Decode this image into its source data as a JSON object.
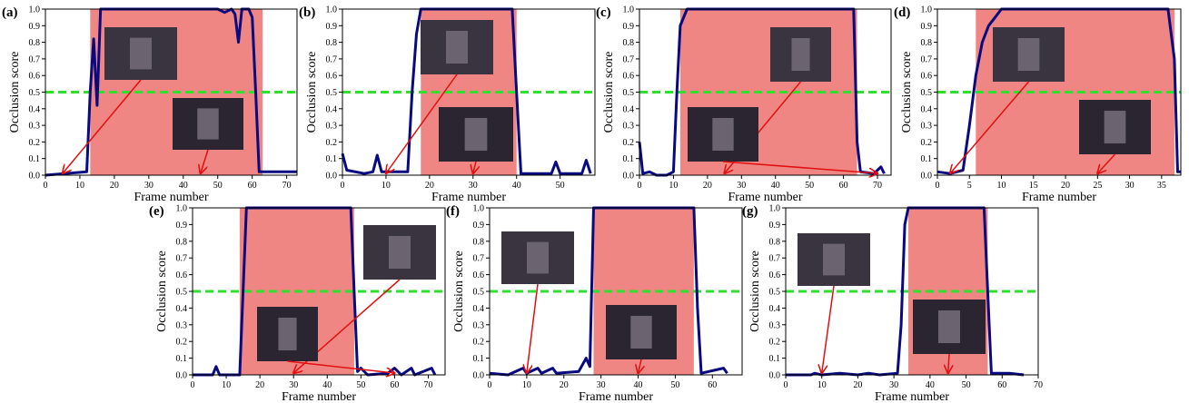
{
  "chart_data": [
    {
      "type": "line",
      "panel_label": "(a)",
      "xlabel": "Frame number",
      "ylabel": "Occlusion score",
      "x": [
        0,
        12,
        13,
        14,
        15,
        16,
        50,
        52,
        54,
        55,
        56,
        57,
        59,
        60,
        61,
        62,
        73
      ],
      "values": [
        0,
        0.02,
        0.5,
        0.82,
        0.42,
        1,
        1,
        0.98,
        1,
        0.97,
        0.8,
        1,
        1,
        0.95,
        0.5,
        0.02,
        0.02
      ],
      "color": "#0a0a80",
      "xlim": [
        0,
        73
      ],
      "xticks": [
        0,
        10,
        20,
        30,
        40,
        50,
        60,
        70
      ],
      "ylim": [
        0,
        1
      ],
      "yticks": [
        {
          "value": 0,
          "label": "0.0"
        },
        0.1,
        0.2,
        0.3,
        0.4,
        0.5,
        0.6,
        0.7,
        0.8,
        0.9,
        {
          "value": 1,
          "label": "1.0"
        }
      ],
      "shaded_range": [
        13,
        63
      ],
      "shade_color": "#ef8683",
      "threshold": 0.5,
      "threshold_color": "#2fe02f",
      "arrow_targets": [
        5,
        45
      ]
    },
    {
      "type": "line",
      "panel_label": "(b)",
      "xlabel": "Frame number",
      "ylabel": "Occlusion score",
      "x": [
        0,
        1,
        5,
        7,
        8,
        9,
        15,
        16,
        17,
        18,
        39,
        40,
        41,
        48,
        49,
        50,
        55,
        56,
        57
      ],
      "values": [
        0.13,
        0.03,
        0.01,
        0.02,
        0.12,
        0.02,
        0.02,
        0.5,
        0.85,
        1,
        1,
        0.5,
        0.01,
        0.01,
        0.08,
        0.01,
        0.01,
        0.09,
        0.01
      ],
      "color": "#0a0a80",
      "xlim": [
        0,
        58
      ],
      "xticks": [
        0,
        10,
        20,
        30,
        40,
        50
      ],
      "ylim": [
        0,
        1
      ],
      "yticks": [
        {
          "value": 0,
          "label": "0.0"
        },
        0.1,
        0.2,
        0.3,
        0.4,
        0.5,
        0.6,
        0.7,
        0.8,
        0.9,
        {
          "value": 1,
          "label": "1.0"
        }
      ],
      "shaded_range": [
        18,
        40
      ],
      "shade_color": "#ef8683",
      "threshold": 0.5,
      "threshold_color": "#2fe02f",
      "arrow_targets": [
        10,
        30
      ]
    },
    {
      "type": "line",
      "panel_label": "(c)",
      "xlabel": "Frame number",
      "ylabel": "Occlusion score",
      "x": [
        0,
        1,
        3,
        5,
        8,
        10,
        11,
        12,
        14,
        63,
        64,
        65,
        69,
        71,
        72
      ],
      "values": [
        0.2,
        0.01,
        0.02,
        0,
        0,
        0.02,
        0.5,
        0.9,
        1,
        1,
        0.2,
        0.02,
        0.01,
        0.05,
        0.01
      ],
      "color": "#0a0a80",
      "xlim": [
        0,
        74
      ],
      "xticks": [
        0,
        10,
        20,
        30,
        40,
        50,
        60,
        70
      ],
      "ylim": [
        0,
        1
      ],
      "yticks": [
        {
          "value": 0,
          "label": "0.0"
        },
        0.1,
        0.2,
        0.3,
        0.4,
        0.5,
        0.6,
        0.7,
        0.8,
        0.9,
        {
          "value": 1,
          "label": "1.0"
        }
      ],
      "shaded_range": [
        12,
        64
      ],
      "shade_color": "#ef8683",
      "threshold": 0.5,
      "threshold_color": "#2fe02f",
      "arrow_targets": [
        25,
        70
      ]
    },
    {
      "type": "line",
      "panel_label": "(d)",
      "xlabel": "Frame number",
      "ylabel": "Occlusion score",
      "x": [
        0,
        2,
        4,
        5,
        6,
        7,
        8,
        9,
        10,
        36,
        37,
        37.5,
        38
      ],
      "values": [
        0.02,
        0.01,
        0.03,
        0.3,
        0.6,
        0.8,
        0.9,
        0.95,
        1,
        1,
        0.7,
        0.02,
        0.02
      ],
      "color": "#0a0a80",
      "xlim": [
        0,
        38
      ],
      "xticks": [
        0,
        5,
        10,
        15,
        20,
        25,
        30,
        35
      ],
      "ylim": [
        0,
        1
      ],
      "yticks": [
        {
          "value": 0,
          "label": "0.0"
        },
        0.1,
        0.2,
        0.3,
        0.4,
        0.5,
        0.6,
        0.7,
        0.8,
        0.9,
        {
          "value": 1,
          "label": "1.0"
        }
      ],
      "shaded_range": [
        6,
        37
      ],
      "shade_color": "#ef8683",
      "threshold": 0.5,
      "threshold_color": "#2fe02f",
      "arrow_targets": [
        2,
        25
      ]
    },
    {
      "type": "line",
      "panel_label": "(e)",
      "xlabel": "Frame number",
      "ylabel": "Occlusion score",
      "x": [
        0,
        6,
        7,
        8,
        14,
        15,
        16,
        47,
        48,
        49,
        50,
        52,
        58,
        60,
        62,
        65,
        66,
        71,
        72
      ],
      "values": [
        0,
        0,
        0.05,
        0,
        0,
        0.5,
        1,
        1,
        0.5,
        0.02,
        0.04,
        0,
        0.01,
        0.04,
        0,
        0.04,
        0,
        0.04,
        0
      ],
      "color": "#0a0a80",
      "xlim": [
        0,
        75
      ],
      "xticks": [
        0,
        10,
        20,
        30,
        40,
        50,
        60,
        70
      ],
      "ylim": [
        0,
        1
      ],
      "yticks": [
        {
          "value": 0,
          "label": "0.0"
        },
        0.1,
        0.2,
        0.3,
        0.4,
        0.5,
        0.6,
        0.7,
        0.8,
        0.9,
        {
          "value": 1,
          "label": "1.0"
        }
      ],
      "shaded_range": [
        14,
        48
      ],
      "shade_color": "#ef8683",
      "threshold": 0.5,
      "threshold_color": "#2fe02f",
      "arrow_targets": [
        30,
        60
      ]
    },
    {
      "type": "line",
      "panel_label": "(f)",
      "xlabel": "Frame number",
      "ylabel": "Occlusion score",
      "x": [
        0,
        5,
        9,
        10,
        13,
        14,
        17,
        18,
        24,
        26,
        27,
        28,
        55,
        56,
        57,
        63,
        64
      ],
      "values": [
        0.01,
        0,
        0.04,
        0.01,
        0.04,
        0.01,
        0.04,
        0.01,
        0.02,
        0.1,
        0.05,
        1,
        1,
        0.4,
        0.01,
        0.04,
        0.01
      ],
      "color": "#0a0a80",
      "xlim": [
        0,
        68
      ],
      "xticks": [
        0,
        10,
        20,
        30,
        40,
        50,
        60
      ],
      "ylim": [
        0,
        1
      ],
      "yticks": [
        {
          "value": 0,
          "label": "0.0"
        },
        0.1,
        0.2,
        0.3,
        0.4,
        0.5,
        0.6,
        0.7,
        0.8,
        0.9,
        {
          "value": 1,
          "label": "1.0"
        }
      ],
      "shaded_range": [
        28,
        55
      ],
      "shade_color": "#ef8683",
      "threshold": 0.5,
      "threshold_color": "#2fe02f",
      "arrow_targets": [
        10,
        40
      ]
    },
    {
      "type": "line",
      "panel_label": "(g)",
      "xlabel": "Frame number",
      "ylabel": "Occlusion score",
      "x": [
        0,
        7,
        8,
        10,
        15,
        20,
        23,
        26,
        31,
        32,
        33,
        34,
        55,
        56,
        57,
        62,
        66
      ],
      "values": [
        0,
        0,
        0.01,
        0,
        0.01,
        0,
        0.01,
        0,
        0.01,
        0.3,
        0.9,
        1,
        1,
        0.5,
        0.01,
        0.01,
        0
      ],
      "color": "#0a0a80",
      "xlim": [
        0,
        70
      ],
      "xticks": [
        0,
        10,
        20,
        30,
        40,
        50,
        60,
        70
      ],
      "ylim": [
        0,
        1
      ],
      "yticks": [
        {
          "value": 0,
          "label": "0.0"
        },
        0.1,
        0.2,
        0.3,
        0.4,
        0.5,
        0.6,
        0.7,
        0.8,
        0.9,
        {
          "value": 1,
          "label": "1.0"
        }
      ],
      "shaded_range": [
        34,
        56
      ],
      "shade_color": "#ef8683",
      "threshold": 0.5,
      "threshold_color": "#2fe02f",
      "arrow_targets": [
        10,
        45
      ]
    }
  ]
}
